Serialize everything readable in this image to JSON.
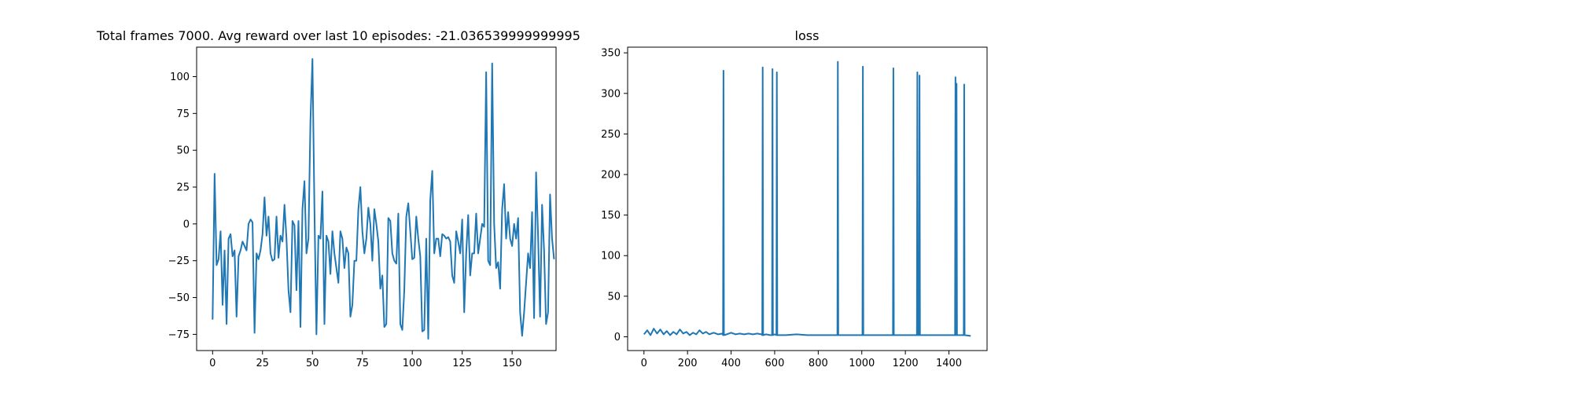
{
  "chart_data": [
    {
      "type": "line",
      "title": "Total frames 7000. Avg reward over last 10 episodes: -21.036539999999995",
      "xlabel": "",
      "ylabel": "",
      "xlim": [
        -8,
        172
      ],
      "ylim": [
        -86,
        120
      ],
      "x_ticks": [
        0,
        25,
        50,
        75,
        100,
        125,
        150
      ],
      "y_ticks": [
        -75,
        -50,
        -25,
        0,
        25,
        50,
        75,
        100
      ],
      "grid": false,
      "color": "#1f77b4",
      "series": [
        {
          "values": [
            -65,
            34,
            -28,
            -24,
            -5,
            -55,
            -18,
            -68,
            -10,
            -7,
            -22,
            -18,
            -63,
            -22,
            -18,
            -12,
            -15,
            -18,
            0,
            3,
            1,
            -74,
            -20,
            -24,
            -18,
            -7,
            18,
            -8,
            5,
            -20,
            -25,
            -24,
            5,
            -23,
            -8,
            -12,
            13,
            -10,
            -45,
            -60,
            2,
            -1,
            -45,
            2,
            -70,
            10,
            29,
            -20,
            -10,
            70,
            112,
            10,
            -75,
            -8,
            -10,
            22,
            -68,
            -8,
            -12,
            -34,
            -5,
            -20,
            -30,
            -40,
            -5,
            -10,
            -30,
            -16,
            -20,
            -63,
            -55,
            -25,
            -25,
            10,
            25,
            -5,
            -20,
            -10,
            11,
            0,
            -25,
            10,
            0,
            -12,
            -44,
            -35,
            -70,
            -68,
            4,
            2,
            -20,
            -25,
            -27,
            7,
            -68,
            -72,
            -45,
            5,
            14,
            -5,
            -24,
            -23,
            5,
            -10,
            -22,
            -73,
            -72,
            -10,
            -78,
            16,
            36,
            -20,
            -10,
            -10,
            -22,
            -7,
            -8,
            -10,
            -9,
            -12,
            -35,
            -40,
            -5,
            -12,
            -20,
            3,
            -60,
            -20,
            6,
            -35,
            -20,
            -20,
            7,
            -20,
            -10,
            0,
            -2,
            103,
            -25,
            -28,
            109,
            0,
            -30,
            -26,
            -44,
            10,
            27,
            -10,
            8,
            -10,
            -15,
            0,
            -10,
            4,
            -60,
            -76,
            -60,
            -40,
            -20,
            -30,
            8,
            -64,
            35,
            -8,
            -63,
            13,
            -18,
            -68,
            -60,
            20,
            -10,
            -24
          ]
        }
      ]
    },
    {
      "type": "line",
      "title": "loss",
      "xlabel": "",
      "ylabel": "",
      "xlim": [
        -75,
        1575
      ],
      "ylim": [
        -17,
        357
      ],
      "x_ticks": [
        0,
        200,
        400,
        600,
        800,
        1000,
        1200,
        1400
      ],
      "y_ticks": [
        0,
        50,
        100,
        150,
        200,
        250,
        300,
        350
      ],
      "grid": false,
      "color": "#1f77b4",
      "series": [
        {
          "baseline_points": [
            [
              0,
              3
            ],
            [
              15,
              8
            ],
            [
              30,
              2
            ],
            [
              45,
              10
            ],
            [
              60,
              4
            ],
            [
              75,
              9
            ],
            [
              90,
              3
            ],
            [
              105,
              7
            ],
            [
              120,
              2
            ],
            [
              135,
              6
            ],
            [
              150,
              3
            ],
            [
              165,
              9
            ],
            [
              180,
              4
            ],
            [
              195,
              6
            ],
            [
              210,
              2
            ],
            [
              225,
              5
            ],
            [
              240,
              3
            ],
            [
              255,
              8
            ],
            [
              270,
              4
            ],
            [
              285,
              6
            ],
            [
              300,
              3
            ],
            [
              320,
              5
            ],
            [
              340,
              3
            ],
            [
              360,
              4
            ],
            [
              380,
              3
            ],
            [
              400,
              5
            ],
            [
              420,
              3
            ],
            [
              440,
              4
            ],
            [
              460,
              3
            ],
            [
              480,
              4
            ],
            [
              500,
              3
            ],
            [
              520,
              4
            ],
            [
              540,
              3
            ],
            [
              560,
              3
            ],
            [
              580,
              2
            ],
            [
              600,
              3
            ],
            [
              650,
              2
            ],
            [
              700,
              3
            ],
            [
              750,
              2
            ],
            [
              800,
              2
            ],
            [
              850,
              2
            ],
            [
              900,
              2
            ],
            [
              950,
              2
            ],
            [
              1000,
              2
            ],
            [
              1050,
              2
            ],
            [
              1100,
              2
            ],
            [
              1150,
              2
            ],
            [
              1200,
              2
            ],
            [
              1250,
              2
            ],
            [
              1300,
              2
            ],
            [
              1350,
              2
            ],
            [
              1400,
              2
            ],
            [
              1450,
              2
            ],
            [
              1500,
              1
            ]
          ],
          "spikes": [
            [
              365,
              328
            ],
            [
              545,
              332
            ],
            [
              590,
              330
            ],
            [
              610,
              326
            ],
            [
              890,
              339
            ],
            [
              1005,
              333
            ],
            [
              1145,
              331
            ],
            [
              1255,
              326
            ],
            [
              1265,
              322
            ],
            [
              1430,
              320
            ],
            [
              1435,
              312
            ],
            [
              1470,
              311
            ]
          ]
        }
      ]
    }
  ]
}
